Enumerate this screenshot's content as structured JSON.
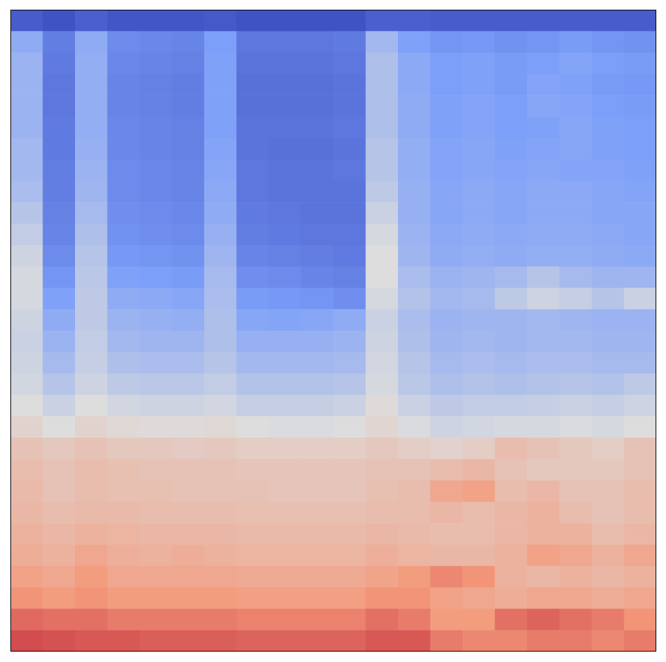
{
  "chart_data": {
    "type": "heatmap",
    "tick_labels": false,
    "color_range": [
      0,
      1
    ],
    "cells": [
      [
        0.05,
        0.02,
        0.06,
        0.03,
        0.03,
        0.03,
        0.04,
        0.02,
        0.02,
        0.02,
        0.02,
        0.06,
        0.06,
        0.05,
        0.05,
        0.05,
        0.05,
        0.05,
        0.05,
        0.05
      ],
      [
        0.3,
        0.15,
        0.3,
        0.19,
        0.18,
        0.17,
        0.25,
        0.13,
        0.13,
        0.13,
        0.14,
        0.35,
        0.26,
        0.22,
        0.23,
        0.21,
        0.22,
        0.24,
        0.22,
        0.21
      ],
      [
        0.33,
        0.14,
        0.31,
        0.18,
        0.17,
        0.16,
        0.26,
        0.12,
        0.12,
        0.12,
        0.13,
        0.38,
        0.29,
        0.25,
        0.26,
        0.24,
        0.25,
        0.27,
        0.25,
        0.24
      ],
      [
        0.33,
        0.13,
        0.31,
        0.17,
        0.16,
        0.15,
        0.26,
        0.11,
        0.11,
        0.11,
        0.12,
        0.38,
        0.29,
        0.25,
        0.26,
        0.24,
        0.27,
        0.26,
        0.24,
        0.23
      ],
      [
        0.33,
        0.13,
        0.31,
        0.17,
        0.16,
        0.15,
        0.26,
        0.11,
        0.11,
        0.11,
        0.12,
        0.38,
        0.3,
        0.26,
        0.27,
        0.25,
        0.28,
        0.27,
        0.25,
        0.24
      ],
      [
        0.33,
        0.14,
        0.31,
        0.18,
        0.17,
        0.16,
        0.26,
        0.12,
        0.12,
        0.12,
        0.13,
        0.38,
        0.3,
        0.26,
        0.27,
        0.25,
        0.26,
        0.28,
        0.26,
        0.25
      ],
      [
        0.35,
        0.14,
        0.32,
        0.18,
        0.17,
        0.16,
        0.27,
        0.12,
        0.11,
        0.11,
        0.12,
        0.4,
        0.31,
        0.27,
        0.28,
        0.26,
        0.27,
        0.28,
        0.26,
        0.25
      ],
      [
        0.35,
        0.15,
        0.33,
        0.19,
        0.18,
        0.17,
        0.28,
        0.13,
        0.12,
        0.12,
        0.13,
        0.4,
        0.31,
        0.27,
        0.28,
        0.27,
        0.28,
        0.27,
        0.27,
        0.26
      ],
      [
        0.37,
        0.15,
        0.34,
        0.19,
        0.18,
        0.17,
        0.29,
        0.13,
        0.12,
        0.12,
        0.12,
        0.42,
        0.32,
        0.28,
        0.29,
        0.28,
        0.29,
        0.29,
        0.28,
        0.27
      ],
      [
        0.4,
        0.16,
        0.36,
        0.2,
        0.19,
        0.18,
        0.3,
        0.14,
        0.13,
        0.12,
        0.12,
        0.45,
        0.32,
        0.28,
        0.29,
        0.28,
        0.29,
        0.29,
        0.28,
        0.28
      ],
      [
        0.43,
        0.17,
        0.38,
        0.21,
        0.2,
        0.19,
        0.32,
        0.15,
        0.14,
        0.13,
        0.13,
        0.48,
        0.33,
        0.29,
        0.3,
        0.29,
        0.3,
        0.3,
        0.29,
        0.28
      ],
      [
        0.46,
        0.19,
        0.4,
        0.23,
        0.22,
        0.21,
        0.34,
        0.17,
        0.16,
        0.15,
        0.14,
        0.5,
        0.34,
        0.3,
        0.31,
        0.3,
        0.31,
        0.31,
        0.3,
        0.29
      ],
      [
        0.48,
        0.22,
        0.41,
        0.26,
        0.25,
        0.24,
        0.36,
        0.2,
        0.19,
        0.17,
        0.16,
        0.5,
        0.37,
        0.33,
        0.34,
        0.36,
        0.4,
        0.36,
        0.34,
        0.34
      ],
      [
        0.48,
        0.26,
        0.42,
        0.3,
        0.29,
        0.28,
        0.37,
        0.24,
        0.23,
        0.22,
        0.2,
        0.48,
        0.39,
        0.35,
        0.36,
        0.42,
        0.46,
        0.44,
        0.4,
        0.45
      ],
      [
        0.46,
        0.3,
        0.42,
        0.33,
        0.32,
        0.31,
        0.38,
        0.28,
        0.27,
        0.28,
        0.3,
        0.45,
        0.37,
        0.33,
        0.34,
        0.34,
        0.35,
        0.34,
        0.33,
        0.33
      ],
      [
        0.45,
        0.33,
        0.43,
        0.35,
        0.34,
        0.34,
        0.38,
        0.32,
        0.32,
        0.32,
        0.33,
        0.46,
        0.38,
        0.34,
        0.35,
        0.34,
        0.35,
        0.35,
        0.34,
        0.34
      ],
      [
        0.46,
        0.36,
        0.44,
        0.38,
        0.37,
        0.37,
        0.4,
        0.35,
        0.35,
        0.35,
        0.36,
        0.47,
        0.4,
        0.36,
        0.37,
        0.36,
        0.37,
        0.37,
        0.36,
        0.36
      ],
      [
        0.47,
        0.4,
        0.46,
        0.42,
        0.41,
        0.41,
        0.43,
        0.39,
        0.39,
        0.39,
        0.4,
        0.48,
        0.41,
        0.38,
        0.39,
        0.38,
        0.39,
        0.4,
        0.39,
        0.42
      ],
      [
        0.5,
        0.45,
        0.5,
        0.47,
        0.46,
        0.46,
        0.47,
        0.44,
        0.44,
        0.44,
        0.45,
        0.51,
        0.45,
        0.42,
        0.43,
        0.43,
        0.44,
        0.45,
        0.44,
        0.46
      ],
      [
        0.54,
        0.5,
        0.54,
        0.52,
        0.51,
        0.51,
        0.52,
        0.5,
        0.49,
        0.49,
        0.5,
        0.53,
        0.49,
        0.46,
        0.47,
        0.48,
        0.48,
        0.49,
        0.48,
        0.5
      ],
      [
        0.6,
        0.58,
        0.6,
        0.58,
        0.58,
        0.57,
        0.58,
        0.56,
        0.56,
        0.56,
        0.56,
        0.58,
        0.56,
        0.54,
        0.56,
        0.62,
        0.6,
        0.58,
        0.56,
        0.6
      ],
      [
        0.62,
        0.6,
        0.62,
        0.61,
        0.6,
        0.6,
        0.6,
        0.59,
        0.59,
        0.59,
        0.59,
        0.6,
        0.6,
        0.62,
        0.64,
        0.6,
        0.58,
        0.58,
        0.58,
        0.6
      ],
      [
        0.63,
        0.6,
        0.62,
        0.61,
        0.61,
        0.6,
        0.6,
        0.6,
        0.59,
        0.59,
        0.59,
        0.61,
        0.62,
        0.7,
        0.72,
        0.62,
        0.64,
        0.6,
        0.6,
        0.62
      ],
      [
        0.64,
        0.62,
        0.63,
        0.63,
        0.62,
        0.62,
        0.62,
        0.61,
        0.61,
        0.61,
        0.61,
        0.62,
        0.62,
        0.64,
        0.62,
        0.64,
        0.66,
        0.62,
        0.6,
        0.62
      ],
      [
        0.66,
        0.64,
        0.66,
        0.65,
        0.64,
        0.64,
        0.64,
        0.63,
        0.63,
        0.63,
        0.63,
        0.64,
        0.63,
        0.62,
        0.62,
        0.64,
        0.66,
        0.66,
        0.62,
        0.64
      ],
      [
        0.68,
        0.66,
        0.7,
        0.67,
        0.66,
        0.68,
        0.66,
        0.65,
        0.65,
        0.65,
        0.65,
        0.67,
        0.65,
        0.64,
        0.64,
        0.66,
        0.72,
        0.7,
        0.66,
        0.7
      ],
      [
        0.72,
        0.7,
        0.74,
        0.7,
        0.7,
        0.7,
        0.7,
        0.69,
        0.69,
        0.69,
        0.69,
        0.71,
        0.74,
        0.78,
        0.76,
        0.66,
        0.64,
        0.66,
        0.64,
        0.66
      ],
      [
        0.76,
        0.74,
        0.76,
        0.74,
        0.74,
        0.74,
        0.74,
        0.73,
        0.73,
        0.73,
        0.73,
        0.76,
        0.76,
        0.72,
        0.7,
        0.68,
        0.7,
        0.7,
        0.68,
        0.7
      ],
      [
        0.83,
        0.82,
        0.82,
        0.8,
        0.8,
        0.8,
        0.8,
        0.79,
        0.79,
        0.79,
        0.79,
        0.82,
        0.8,
        0.74,
        0.74,
        0.82,
        0.84,
        0.82,
        0.8,
        0.76
      ],
      [
        0.88,
        0.87,
        0.86,
        0.86,
        0.85,
        0.85,
        0.85,
        0.84,
        0.84,
        0.84,
        0.84,
        0.86,
        0.86,
        0.8,
        0.78,
        0.78,
        0.8,
        0.8,
        0.78,
        0.8
      ]
    ]
  }
}
